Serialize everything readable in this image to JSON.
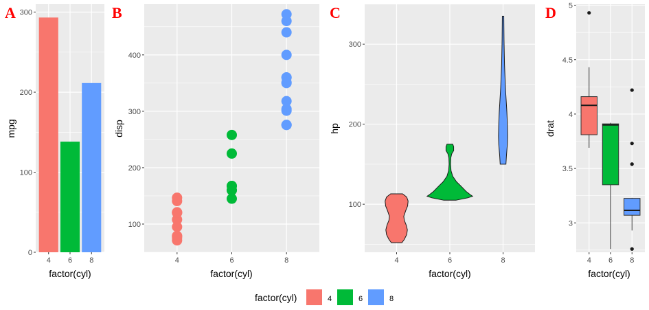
{
  "chart_data": [
    {
      "panel": "A",
      "type": "bar",
      "xlabel": "factor(cyl)",
      "ylabel": "mpg",
      "categories": [
        "4",
        "6",
        "8"
      ],
      "values": [
        293.3,
        138.2,
        211.4
      ],
      "colors": [
        "#F8766D",
        "#00BA38",
        "#619CFF"
      ],
      "ylim": [
        0,
        310
      ],
      "yticks": [
        0,
        100,
        200,
        300
      ],
      "grid": true
    },
    {
      "panel": "B",
      "type": "scatter",
      "xlabel": "factor(cyl)",
      "ylabel": "disp",
      "categories": [
        "4",
        "6",
        "8"
      ],
      "colors": [
        "#F8766D",
        "#00BA38",
        "#619CFF"
      ],
      "points": [
        {
          "cat": "4",
          "values": [
            108.0,
            146.7,
            140.8,
            78.7,
            75.7,
            71.1,
            120.1,
            79.0,
            120.3,
            95.1,
            121.0
          ]
        },
        {
          "cat": "6",
          "values": [
            160.0,
            160.0,
            258.0,
            225.0,
            167.6,
            167.6,
            145.0
          ]
        },
        {
          "cat": "8",
          "values": [
            360.0,
            360.0,
            275.8,
            275.8,
            275.8,
            472.0,
            460.0,
            440.0,
            318.0,
            304.0,
            350.0,
            400.0,
            351.0,
            301.0
          ]
        }
      ],
      "ylim": [
        50,
        490
      ],
      "yticks": [
        100,
        200,
        300,
        400
      ],
      "grid": true
    },
    {
      "panel": "C",
      "type": "violin",
      "xlabel": "factor(cyl)",
      "ylabel": "hp",
      "categories": [
        "4",
        "6",
        "8"
      ],
      "colors": [
        "#F8766D",
        "#00BA38",
        "#619CFF"
      ],
      "shapes": [
        {
          "cat": "4",
          "profile": [
            [
              52,
              0.22
            ],
            [
              56,
              0.32
            ],
            [
              62,
              0.42
            ],
            [
              68,
              0.45
            ],
            [
              74,
              0.4
            ],
            [
              80,
              0.32
            ],
            [
              85,
              0.3
            ],
            [
              92,
              0.38
            ],
            [
              98,
              0.46
            ],
            [
              104,
              0.48
            ],
            [
              109,
              0.42
            ],
            [
              113,
              0.25
            ]
          ]
        },
        {
          "cat": "6",
          "profile": [
            [
              105,
              0.25
            ],
            [
              108,
              0.75
            ],
            [
              110,
              0.95
            ],
            [
              112,
              0.85
            ],
            [
              116,
              0.68
            ],
            [
              120,
              0.55
            ],
            [
              124,
              0.42
            ],
            [
              128,
              0.28
            ],
            [
              135,
              0.12
            ],
            [
              142,
              0.05
            ],
            [
              150,
              0.03
            ],
            [
              158,
              0.04
            ],
            [
              163,
              0.08
            ],
            [
              167,
              0.16
            ],
            [
              172,
              0.16
            ],
            [
              175,
              0.12
            ]
          ]
        },
        {
          "cat": "8",
          "profile": [
            [
              150,
              0.12
            ],
            [
              160,
              0.14
            ],
            [
              175,
              0.18
            ],
            [
              185,
              0.19
            ],
            [
              200,
              0.18
            ],
            [
              215,
              0.16
            ],
            [
              230,
              0.13
            ],
            [
              245,
              0.1
            ],
            [
              260,
              0.08
            ],
            [
              275,
              0.06
            ],
            [
              290,
              0.05
            ],
            [
              305,
              0.04
            ],
            [
              320,
              0.035
            ],
            [
              335,
              0.03
            ]
          ]
        }
      ],
      "ylim": [
        40,
        350
      ],
      "yticks": [
        100,
        200,
        300
      ],
      "grid": true
    },
    {
      "panel": "D",
      "type": "boxplot",
      "xlabel": "factor(cyl)",
      "ylabel": "drat",
      "categories": [
        "4",
        "6",
        "8"
      ],
      "colors": [
        "#F8766D",
        "#00BA38",
        "#619CFF"
      ],
      "boxes": [
        {
          "cat": "4",
          "whislo": 3.69,
          "q1": 3.81,
          "med": 4.08,
          "q3": 4.16,
          "whishi": 4.43,
          "outliers": [
            4.93
          ]
        },
        {
          "cat": "6",
          "whislo": 2.76,
          "q1": 3.35,
          "med": 3.9,
          "q3": 3.91,
          "whishi": 3.92,
          "outliers": []
        },
        {
          "cat": "8",
          "whislo": 2.93,
          "q1": 3.07,
          "med": 3.115,
          "q3": 3.225,
          "whishi": 3.23,
          "outliers": [
            4.22,
            3.73,
            3.54,
            2.76
          ]
        }
      ],
      "ylim": [
        2.73,
        5.01
      ],
      "yticks": [
        3.0,
        3.5,
        4.0,
        4.5,
        5.0
      ],
      "grid": true
    }
  ],
  "panel_labels": [
    "A",
    "B",
    "C",
    "D"
  ],
  "legend": {
    "title": "factor(cyl)",
    "placement": "bottom",
    "items": [
      {
        "label": "4",
        "color": "#F8766D"
      },
      {
        "label": "6",
        "color": "#00BA38"
      },
      {
        "label": "8",
        "color": "#619CFF"
      }
    ]
  }
}
